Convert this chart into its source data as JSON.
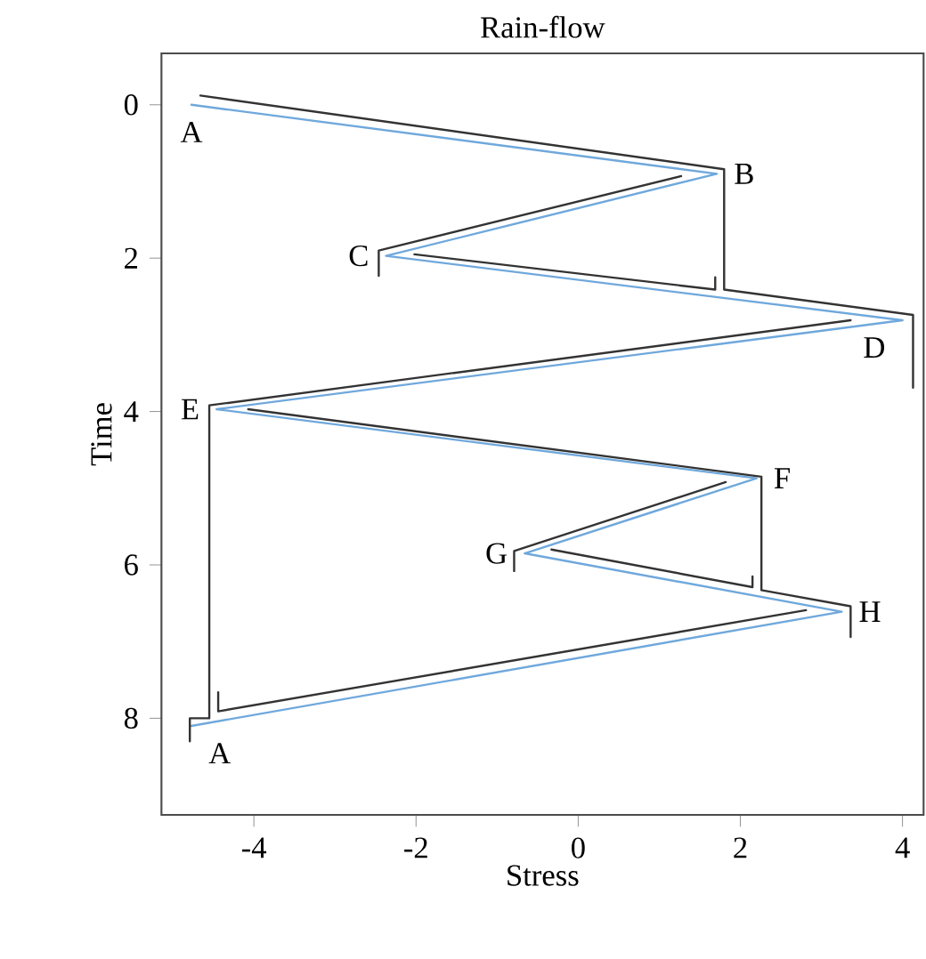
{
  "chart_data": {
    "type": "line",
    "title": "Rain-flow",
    "xlabel": "Stress",
    "ylabel": "Time",
    "xlim": [
      -5.14,
      4.26
    ],
    "ylim": [
      9.26,
      -0.67
    ],
    "xticks": [
      -4,
      -2,
      0,
      2,
      4
    ],
    "yticks": [
      0,
      2,
      4,
      6,
      8
    ],
    "marker": "none",
    "line_style": "solid",
    "series": [
      {
        "color": "#6fa8dc",
        "x": [
          -4.77,
          1.71,
          -2.37,
          4.0,
          -4.46,
          2.2,
          -0.66,
          3.25,
          -4.77
        ],
        "values": [
          0,
          0.9,
          1.97,
          2.81,
          3.97,
          4.87,
          5.85,
          6.61,
          8.1
        ]
      },
      {
        "color": "#333333",
        "x": [
          -4.66,
          1.8,
          1.8,
          4.13,
          4.13,
          null,
          1.27,
          -2.46,
          -2.46,
          null,
          -2.02,
          1.69,
          1.69,
          null,
          3.36,
          -4.55,
          -4.55,
          -4.79,
          -4.79,
          null,
          -4.07,
          2.26,
          2.26,
          3.36,
          3.36,
          null,
          1.82,
          -0.79,
          -0.79,
          null,
          -0.33,
          2.15,
          2.15,
          null,
          2.81,
          -4.44,
          -4.44
        ],
        "values": [
          -0.12,
          0.84,
          2.41,
          2.74,
          3.69,
          null,
          0.93,
          1.9,
          2.23,
          null,
          1.95,
          2.41,
          2.25,
          null,
          2.81,
          3.92,
          8.0,
          8.0,
          8.3,
          null,
          3.97,
          4.85,
          6.33,
          6.54,
          6.94,
          null,
          4.92,
          5.82,
          6.08,
          null,
          5.8,
          6.29,
          6.15,
          null,
          6.59,
          7.91,
          7.66
        ]
      }
    ],
    "annotations": [
      {
        "text": "A",
        "x": -4.77,
        "y": 0
      },
      {
        "text": "B",
        "x": 1.71,
        "y": 0.9
      },
      {
        "text": "C",
        "x": -2.37,
        "y": 1.97
      },
      {
        "text": "D",
        "x": 4.0,
        "y": 2.81
      },
      {
        "text": "E",
        "x": -4.46,
        "y": 3.97
      },
      {
        "text": "F",
        "x": 2.2,
        "y": 4.87
      },
      {
        "text": "G",
        "x": -0.66,
        "y": 5.85
      },
      {
        "text": "H",
        "x": 3.25,
        "y": 6.61
      },
      {
        "text": "A",
        "x": -4.77,
        "y": 8.1
      }
    ]
  }
}
